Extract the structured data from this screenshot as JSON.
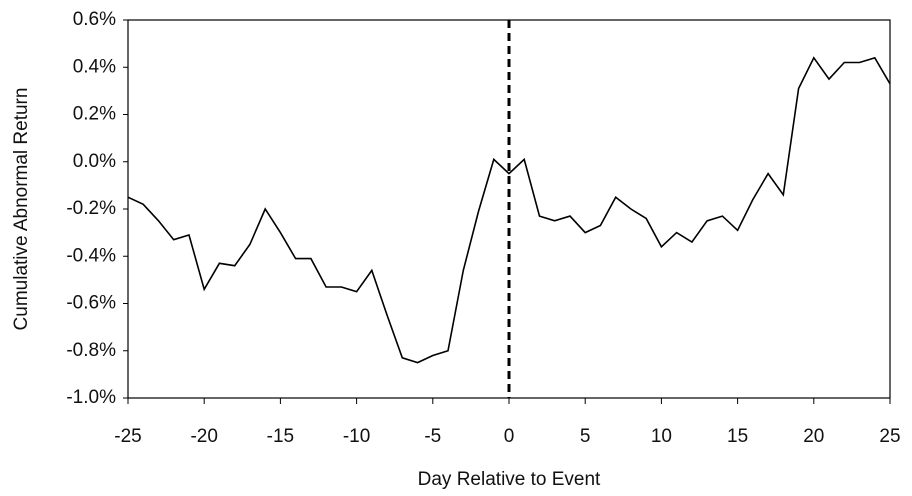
{
  "chart_data": {
    "type": "line",
    "x_label": "Day Relative to Event",
    "y_label": "Cumulative Abnormal Return",
    "x": [
      -25,
      -24,
      -23,
      -22,
      -21,
      -20,
      -19,
      -18,
      -17,
      -16,
      -15,
      -14,
      -13,
      -12,
      -11,
      -10,
      -9,
      -8,
      -7,
      -6,
      -5,
      -4,
      -3,
      -2,
      -1,
      0,
      1,
      2,
      3,
      4,
      5,
      6,
      7,
      8,
      9,
      10,
      11,
      12,
      13,
      14,
      15,
      16,
      17,
      18,
      19,
      20,
      21,
      22,
      23,
      24,
      25
    ],
    "values": [
      -0.15,
      -0.18,
      -0.25,
      -0.33,
      -0.31,
      -0.54,
      -0.43,
      -0.44,
      -0.35,
      -0.2,
      -0.3,
      -0.41,
      -0.41,
      -0.53,
      -0.53,
      -0.55,
      -0.46,
      -0.65,
      -0.83,
      -0.85,
      -0.82,
      -0.8,
      -0.46,
      -0.21,
      0.01,
      -0.05,
      0.01,
      -0.23,
      -0.25,
      -0.23,
      -0.3,
      -0.27,
      -0.15,
      -0.2,
      -0.24,
      -0.36,
      -0.3,
      -0.34,
      -0.25,
      -0.23,
      -0.29,
      -0.16,
      -0.05,
      -0.14,
      0.31,
      0.44,
      0.35,
      0.42,
      0.42,
      0.44,
      0.33
    ],
    "color": "#000000",
    "event_line": 0,
    "xlim": [
      -25,
      25
    ],
    "xticks": [
      -25,
      -20,
      -15,
      -10,
      -5,
      0,
      5,
      10,
      15,
      20,
      25
    ],
    "ylim": [
      -1.0,
      0.6
    ],
    "yticks": [
      {
        "value": -1.0,
        "label": "-1.0%"
      },
      {
        "value": -0.8,
        "label": "-0.8%"
      },
      {
        "value": -0.6,
        "label": "-0.6%"
      },
      {
        "value": -0.4,
        "label": "-0.4%"
      },
      {
        "value": -0.2,
        "label": "-0.2%"
      },
      {
        "value": 0.0,
        "label": "0.0%"
      },
      {
        "value": 0.2,
        "label": "0.2%"
      },
      {
        "value": 0.4,
        "label": "0.4%"
      },
      {
        "value": 0.6,
        "label": "0.6%"
      }
    ]
  }
}
